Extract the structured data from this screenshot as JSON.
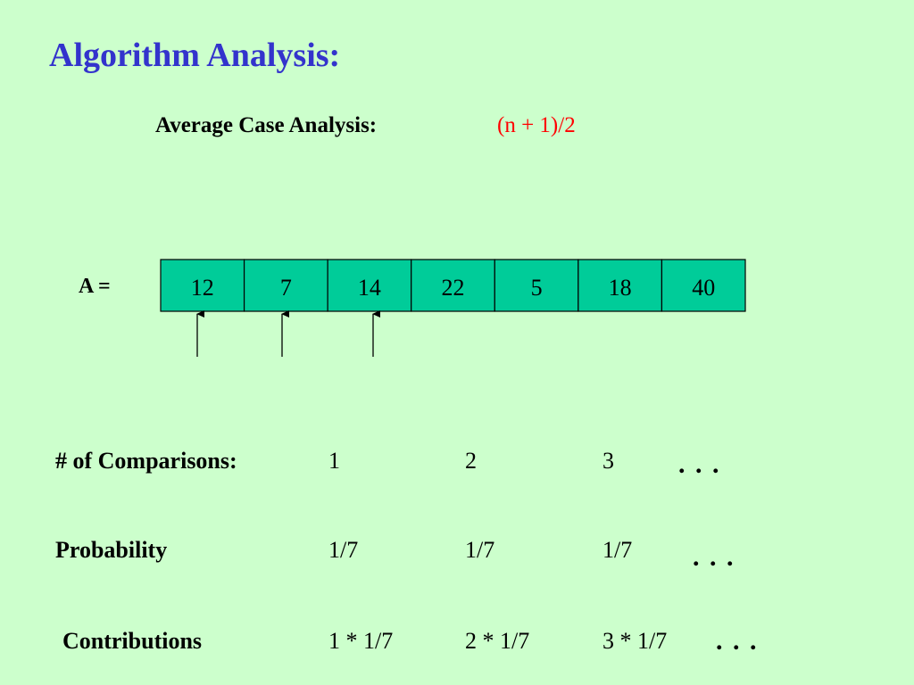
{
  "header": {
    "title": "Algorithm Analysis:",
    "subtitle": "Average Case Analysis:",
    "formula": "(n + 1)/2"
  },
  "array": {
    "label": "A =",
    "values": [
      12,
      7,
      14,
      22,
      5,
      18,
      40
    ]
  },
  "rows": [
    {
      "label": "# of Comparisons:",
      "values": [
        "1",
        "2",
        "3"
      ],
      "ellipsis": ". . ."
    },
    {
      "label": "Probability",
      "values": [
        "1/7",
        "1/7",
        "1/7"
      ],
      "ellipsis": ". . ."
    },
    {
      "label": "Contributions",
      "values": [
        "1 * 1/7",
        "2 * 1/7",
        "3 * 1/7"
      ],
      "ellipsis": ". . ."
    }
  ]
}
